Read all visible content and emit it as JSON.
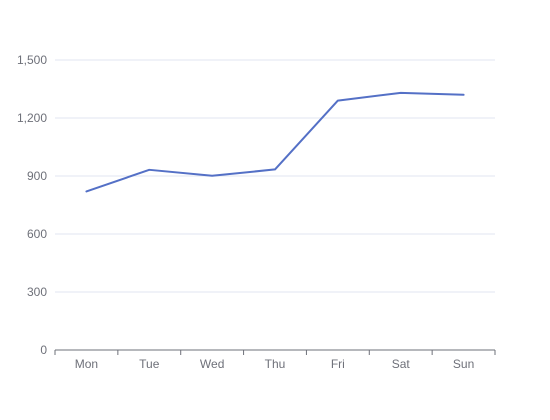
{
  "chart_data": {
    "type": "line",
    "categories": [
      "Mon",
      "Tue",
      "Wed",
      "Thu",
      "Fri",
      "Sat",
      "Sun"
    ],
    "series": [
      {
        "values": [
          820,
          932,
          901,
          934,
          1290,
          1330,
          1320
        ]
      }
    ],
    "ylim": [
      0,
      1500
    ],
    "yticks": [
      0,
      300,
      600,
      900,
      1200,
      1500
    ],
    "ytick_labels": [
      "0",
      "300",
      "600",
      "900",
      "1,200",
      "1,500"
    ],
    "grid": true,
    "legend": "none",
    "colors": {
      "line": "#5470c6",
      "grid": "#e0e6f1",
      "axis": "#6e7079",
      "text": "#6e7079"
    }
  }
}
